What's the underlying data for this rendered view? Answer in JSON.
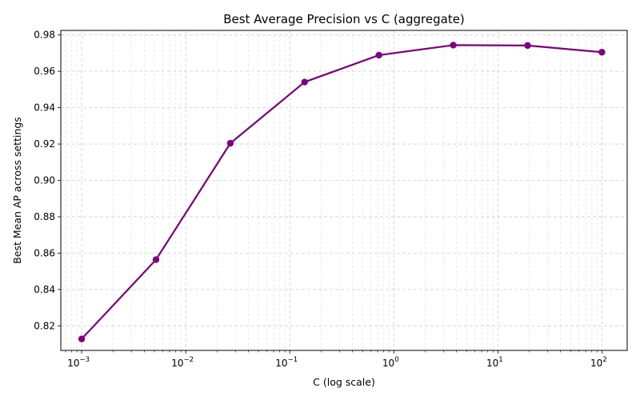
{
  "chart_data": {
    "type": "line",
    "title": "Best Average Precision vs C (aggregate)",
    "xlabel": "C (log scale)",
    "ylabel": "Best Mean AP across settings",
    "xscale": "log",
    "xlim": [
      0.00063,
      175
    ],
    "ylim": [
      0.8065,
      0.9825
    ],
    "grid": true,
    "grid_style": "dashed, major and minor",
    "line_color": "#800080",
    "x_ticks": [
      0.001,
      0.01,
      0.1,
      1,
      10,
      100
    ],
    "x_tick_labels": [
      {
        "base": "10",
        "exp": "−3"
      },
      {
        "base": "10",
        "exp": "−2"
      },
      {
        "base": "10",
        "exp": "−1"
      },
      {
        "base": "10",
        "exp": "0"
      },
      {
        "base": "10",
        "exp": "1"
      },
      {
        "base": "10",
        "exp": "2"
      }
    ],
    "y_ticks": [
      0.82,
      0.84,
      0.86,
      0.88,
      0.9,
      0.92,
      0.94,
      0.96,
      0.98
    ],
    "y_tick_labels": [
      "0.82",
      "0.84",
      "0.86",
      "0.88",
      "0.90",
      "0.92",
      "0.94",
      "0.96",
      "0.98"
    ],
    "series": [
      {
        "x": [
          0.001,
          0.005179,
          0.02683,
          0.1389,
          0.7197,
          3.728,
          19.31,
          100
        ],
        "y": [
          0.8128,
          0.8564,
          0.9204,
          0.9541,
          0.9689,
          0.9744,
          0.9742,
          0.9705
        ]
      }
    ]
  }
}
